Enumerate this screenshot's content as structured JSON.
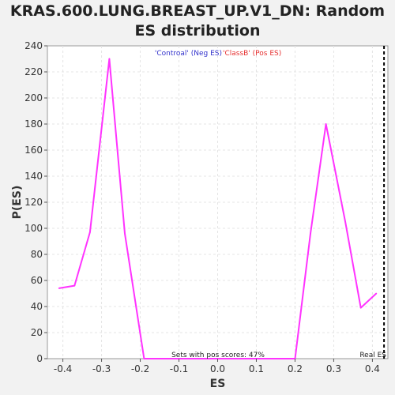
{
  "chart_data": {
    "type": "line",
    "title_line1": "KRAS.600.LUNG.BREAST_UP.V1_DN: Random",
    "title_line2": "ES distribution",
    "xlabel": "ES",
    "ylabel": "P(ES)",
    "xlim": [
      -0.44,
      0.44
    ],
    "ylim": [
      0,
      240
    ],
    "x_ticks": [
      -0.4,
      -0.3,
      -0.2,
      -0.1,
      0.0,
      0.1,
      0.2,
      0.3,
      0.4
    ],
    "x_tick_labels": [
      "-0.4",
      "-0.3",
      "-0.2",
      "-0.1",
      "0.0",
      "0.1",
      "0.2",
      "0.3",
      "0.4"
    ],
    "y_ticks": [
      0,
      20,
      40,
      60,
      80,
      100,
      120,
      140,
      160,
      180,
      200,
      220,
      240
    ],
    "y_tick_labels": [
      "0",
      "20",
      "40",
      "60",
      "80",
      "100",
      "120",
      "140",
      "160",
      "180",
      "200",
      "220",
      "240"
    ],
    "grid": true,
    "series": [
      {
        "color": "#ff33ff",
        "x": [
          -0.41,
          -0.37,
          -0.33,
          -0.28,
          -0.24,
          -0.19,
          -0.15,
          -0.1,
          -0.06,
          -0.02,
          0.03,
          0.07,
          0.11,
          0.16,
          0.2,
          0.24,
          0.28,
          0.33,
          0.37,
          0.41
        ],
        "y": [
          54,
          56,
          97,
          230,
          96,
          0,
          0,
          0,
          0,
          0,
          0,
          0,
          0,
          0,
          0,
          96,
          180,
          105,
          39,
          50
        ]
      }
    ],
    "legend_negative": "'Controal' (Neg ES)",
    "legend_positive": "'ClassB' (Pos ES)",
    "legend_negative_color": "#3333cc",
    "legend_positive_color": "#e63232",
    "annotation": "Sets with pos scores: 47%",
    "real_es_value": 0.43,
    "real_es_label": "Real ES"
  }
}
